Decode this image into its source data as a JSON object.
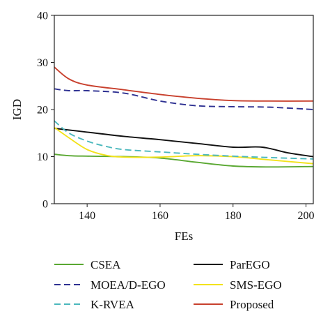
{
  "chart_data": {
    "type": "line",
    "title": "",
    "xlabel": "FEs",
    "ylabel": "IGD",
    "xlim": [
      131,
      202
    ],
    "ylim": [
      0,
      40
    ],
    "xticks": [
      140,
      160,
      180,
      200
    ],
    "yticks": [
      0,
      10,
      20,
      30,
      40
    ],
    "grid": false,
    "legend_position": "bottom",
    "series": [
      {
        "name": "CSEA",
        "color": "#5aa832",
        "dash": "solid",
        "points": [
          [
            131,
            10.5
          ],
          [
            135,
            10.2
          ],
          [
            140,
            10.1
          ],
          [
            150,
            10.0
          ],
          [
            160,
            9.7
          ],
          [
            170,
            8.8
          ],
          [
            180,
            8.0
          ],
          [
            190,
            7.8
          ],
          [
            202,
            7.9
          ]
        ]
      },
      {
        "name": "ParEGO",
        "color": "#111111",
        "dash": "solid",
        "points": [
          [
            131,
            16.0
          ],
          [
            140,
            15.2
          ],
          [
            150,
            14.3
          ],
          [
            160,
            13.6
          ],
          [
            170,
            12.8
          ],
          [
            180,
            12.0
          ],
          [
            188,
            12.0
          ],
          [
            195,
            10.8
          ],
          [
            202,
            10.0
          ]
        ]
      },
      {
        "name": "MOEA/D-EGO",
        "color": "#2e3192",
        "dash": "dashed",
        "points": [
          [
            131,
            24.4
          ],
          [
            135,
            24.0
          ],
          [
            140,
            24.0
          ],
          [
            150,
            23.5
          ],
          [
            160,
            21.8
          ],
          [
            170,
            20.8
          ],
          [
            180,
            20.6
          ],
          [
            190,
            20.5
          ],
          [
            202,
            20.0
          ]
        ]
      },
      {
        "name": "SMS-EGO",
        "color": "#f2e21c",
        "dash": "solid",
        "points": [
          [
            131,
            16.2
          ],
          [
            135,
            14.0
          ],
          [
            140,
            11.5
          ],
          [
            145,
            10.3
          ],
          [
            150,
            9.9
          ],
          [
            160,
            9.9
          ],
          [
            170,
            10.2
          ],
          [
            180,
            10.0
          ],
          [
            190,
            9.3
          ],
          [
            202,
            8.5
          ]
        ]
      },
      {
        "name": "K-RVEA",
        "color": "#4bb8bd",
        "dash": "dashed",
        "points": [
          [
            131,
            17.6
          ],
          [
            135,
            15.0
          ],
          [
            140,
            13.3
          ],
          [
            145,
            12.2
          ],
          [
            150,
            11.5
          ],
          [
            160,
            11.0
          ],
          [
            170,
            10.5
          ],
          [
            180,
            10.1
          ],
          [
            190,
            9.8
          ],
          [
            202,
            9.5
          ]
        ]
      },
      {
        "name": "Proposed",
        "color": "#c8402d",
        "dash": "solid",
        "points": [
          [
            131,
            29.0
          ],
          [
            135,
            26.5
          ],
          [
            140,
            25.2
          ],
          [
            150,
            24.2
          ],
          [
            160,
            23.2
          ],
          [
            170,
            22.4
          ],
          [
            180,
            21.9
          ],
          [
            190,
            21.8
          ],
          [
            202,
            21.8
          ]
        ]
      }
    ]
  }
}
